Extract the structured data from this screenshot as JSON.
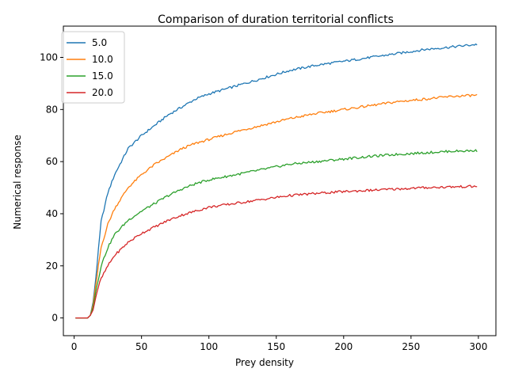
{
  "chart_data": {
    "type": "line",
    "title": "Comparison of duration territorial conflicts",
    "xlabel": "Prey density",
    "ylabel": "Numerical response",
    "xlim": [
      -8,
      313
    ],
    "ylim": [
      -6.8,
      112
    ],
    "xticks": [
      0,
      50,
      100,
      150,
      200,
      250,
      300
    ],
    "yticks": [
      0,
      20,
      40,
      60,
      80,
      100
    ],
    "grid": false,
    "legend_position": "top-left",
    "x": [
      1,
      10,
      12,
      14,
      16,
      18,
      20,
      25,
      30,
      40,
      50,
      60,
      70,
      80,
      90,
      100,
      120,
      140,
      160,
      180,
      200,
      220,
      240,
      260,
      280,
      299
    ],
    "series": [
      {
        "name": "5.0",
        "color": "#1f77b4",
        "values": [
          0,
          0,
          1,
          6,
          15,
          26,
          37,
          48,
          55,
          65,
          70,
          74,
          78,
          81,
          84,
          86,
          89,
          92,
          95,
          97,
          98.5,
          100,
          101.5,
          103,
          104,
          105
        ]
      },
      {
        "name": "10.0",
        "color": "#ff7f0e",
        "values": [
          0,
          0,
          1,
          5,
          12,
          20,
          27,
          36,
          42,
          50,
          55,
          59,
          62,
          65,
          67,
          68.5,
          71.5,
          74,
          76.5,
          78.5,
          80,
          81.5,
          83,
          84,
          85,
          85.5
        ]
      },
      {
        "name": "15.0",
        "color": "#2ca02c",
        "values": [
          0,
          0,
          1,
          4,
          10,
          15,
          20,
          27,
          32,
          37.5,
          41,
          44,
          47,
          49.5,
          51.5,
          53,
          55,
          57,
          59,
          60,
          61,
          62,
          62.8,
          63.4,
          64,
          64.2
        ]
      },
      {
        "name": "20.0",
        "color": "#d62728",
        "values": [
          0,
          0,
          1,
          3,
          8,
          12,
          15,
          20,
          24,
          29,
          32.5,
          35,
          37.5,
          39.5,
          41,
          42.5,
          44,
          45.5,
          47,
          47.8,
          48.5,
          49,
          49.5,
          50,
          50.3,
          50.5
        ]
      }
    ]
  }
}
